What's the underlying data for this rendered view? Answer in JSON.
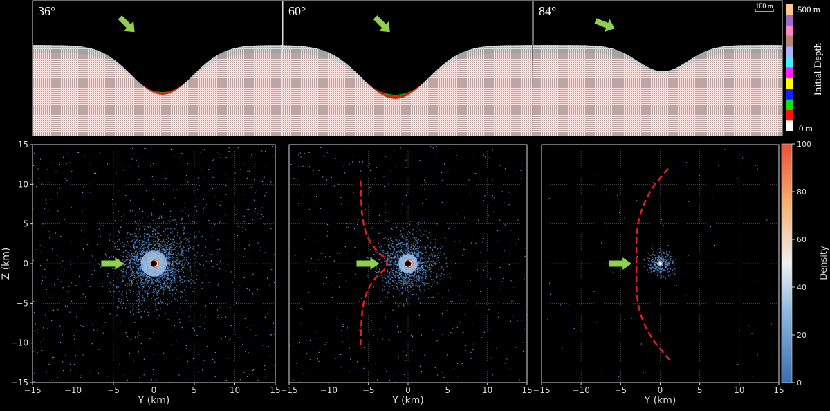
{
  "top_panels": [
    {
      "label": "36°",
      "arrow_color": "#8fd14f"
    },
    {
      "label": "60°",
      "arrow_color": "#8fd14f"
    },
    {
      "label": "84°",
      "arrow_color": "#8fd14f"
    }
  ],
  "scale_bar": "100 m",
  "depth_colorbar": {
    "title": "Initial Depth",
    "top_label": "500 m",
    "bottom_label": "0 m",
    "colors_top_to_bottom": [
      "#ffc890",
      "#9b6fc8",
      "#ff88c8",
      "#b08a6a",
      "#b0b0ff",
      "#40f0ff",
      "#ff20ff",
      "#ffff00",
      "#1020ff",
      "#10e010",
      "#ff1010",
      "#ffffff"
    ]
  },
  "density_colorbar": {
    "title": "Density",
    "ticks": [
      "0",
      "20",
      "40",
      "60",
      "80",
      "100"
    ],
    "range": [
      0,
      100
    ],
    "colormap": "coolwarm-like (blue → white → orange)"
  },
  "chart_data": [
    {
      "type": "scatter",
      "panel": "36°",
      "xlabel": "Y (km)",
      "ylabel": "Z (km)",
      "xlim": [
        -15,
        15
      ],
      "ylim": [
        -15,
        15
      ],
      "xticks": [
        "−15",
        "−10",
        "−5",
        "0",
        "5",
        "10",
        "15"
      ],
      "yticks": [
        "15",
        "10",
        "5",
        "0",
        "−5",
        "−10",
        "−15"
      ],
      "grid": true,
      "density_spread_km": 4,
      "boundary_curve": null
    },
    {
      "type": "scatter",
      "panel": "60°",
      "xlabel": "Y (km)",
      "ylabel": "",
      "xlim": [
        -15,
        15
      ],
      "ylim": [
        -15,
        15
      ],
      "xticks": [
        "−15",
        "−10",
        "−5",
        "0",
        "5",
        "10",
        "15"
      ],
      "grid": true,
      "density_spread_km": 3,
      "boundary_curve": {
        "color": "#e02020",
        "style": "dashed",
        "points": [
          [
            -6,
            10.5
          ],
          [
            -5.8,
            5
          ],
          [
            -4.5,
            2
          ],
          [
            -2,
            0
          ],
          [
            -4.5,
            -2
          ],
          [
            -5.8,
            -5
          ],
          [
            -6,
            -10.5
          ]
        ]
      }
    },
    {
      "type": "scatter",
      "panel": "84°",
      "xlabel": "Y (km)",
      "ylabel": "",
      "xlim": [
        -15,
        15
      ],
      "ylim": [
        -15,
        15
      ],
      "xticks": [
        "−15",
        "−10",
        "−5",
        "0",
        "5",
        "10",
        "15"
      ],
      "grid": true,
      "density_spread_km": 1,
      "boundary_curve": {
        "color": "#e02020",
        "style": "dashed",
        "points": [
          [
            1,
            12
          ],
          [
            -1.5,
            9
          ],
          [
            -3,
            5
          ],
          [
            -3,
            0
          ],
          [
            -3,
            -5
          ],
          [
            -1.5,
            -9
          ],
          [
            1.5,
            -12.5
          ]
        ]
      }
    }
  ]
}
